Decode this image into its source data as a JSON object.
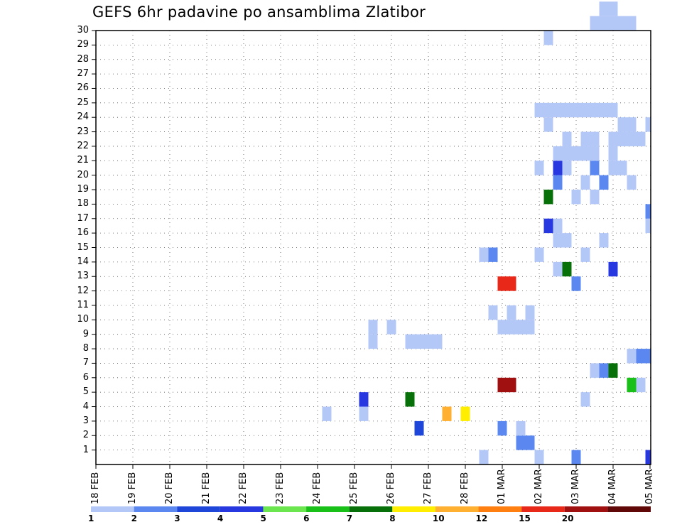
{
  "chart_data": {
    "type": "heatmap",
    "title": "GEFS 6hr padavine po ansamblima Zlatibor",
    "y_ticks": [
      "1",
      "2",
      "3",
      "4",
      "5",
      "6",
      "7",
      "8",
      "9",
      "10",
      "11",
      "12",
      "13",
      "14",
      "15",
      "16",
      "17",
      "18",
      "19",
      "20",
      "21",
      "22",
      "23",
      "24",
      "25",
      "26",
      "27",
      "28",
      "29",
      "30"
    ],
    "x_ticks": [
      "18 FEB",
      "19 FEB",
      "20 FEB",
      "21 FEB",
      "22 FEB",
      "23 FEB",
      "24 FEB",
      "25 FEB",
      "26 FEB",
      "27 FEB",
      "28 FEB",
      "01 MAR",
      "02 MAR",
      "03 MAR",
      "04 MAR",
      "05 MAR"
    ],
    "colorbar": {
      "labels": [
        "1",
        "2",
        "3",
        "4",
        "5",
        "6",
        "7",
        "8",
        "10",
        "12",
        "15",
        "20"
      ],
      "colors": [
        "#b4c8f8",
        "#5a88f0",
        "#1e46d8",
        "#2838e0",
        "#6ce64e",
        "#18c018",
        "#087008",
        "#ffee00",
        "#ffb030",
        "#ff8010",
        "#e82818",
        "#a01010",
        "#600808"
      ]
    },
    "cells": [
      [
        0,
        30,
        0
      ],
      [
        0,
        28.5,
        0
      ],
      [
        0,
        31,
        1
      ],
      [
        0,
        33,
        3
      ],
      [
        0,
        33.5,
        1
      ],
      [
        0,
        34,
        4
      ],
      [
        0,
        34.5,
        0
      ],
      [
        0,
        35,
        1
      ],
      [
        0,
        35.5,
        0
      ],
      [
        1,
        29.5,
        1
      ],
      [
        1,
        29.75,
        1
      ],
      [
        1,
        33.5,
        4
      ],
      [
        1,
        33.75,
        6
      ],
      [
        2,
        26.75,
        2
      ],
      [
        2,
        29,
        1
      ],
      [
        2,
        29.5,
        0
      ],
      [
        2,
        33.5,
        3
      ],
      [
        3,
        24.25,
        0
      ],
      [
        3,
        25.25,
        0
      ],
      [
        3,
        27.5,
        8
      ],
      [
        3,
        28,
        7
      ],
      [
        4,
        25.25,
        3
      ],
      [
        4,
        26.5,
        6
      ],
      [
        4,
        31.25,
        0
      ],
      [
        4,
        33.25,
        1
      ],
      [
        4,
        33.5,
        0
      ],
      [
        4,
        34.75,
        0
      ],
      [
        5,
        29,
        11
      ],
      [
        5,
        29.25,
        11
      ],
      [
        5,
        32.5,
        5
      ],
      [
        5,
        32.75,
        0
      ],
      [
        5,
        33.25,
        0
      ],
      [
        5,
        33.5,
        7
      ],
      [
        5,
        34,
        0
      ],
      [
        6,
        31.5,
        0
      ],
      [
        6,
        31.75,
        1
      ],
      [
        6,
        32,
        6
      ],
      [
        6,
        33.25,
        3
      ],
      [
        7,
        32.5,
        0
      ],
      [
        7,
        32.75,
        1
      ],
      [
        7,
        33,
        1
      ],
      [
        7,
        34,
        0
      ],
      [
        7,
        34.25,
        3
      ],
      [
        8,
        25.5,
        0
      ],
      [
        8,
        26.5,
        0
      ],
      [
        8,
        26.75,
        0
      ],
      [
        8,
        27,
        0
      ],
      [
        8,
        27.25,
        0
      ],
      [
        9,
        25.5,
        0
      ],
      [
        9,
        26,
        0
      ],
      [
        9,
        29,
        0
      ],
      [
        9,
        29.25,
        0
      ],
      [
        9,
        29.5,
        0
      ],
      [
        9,
        29.75,
        0
      ],
      [
        10,
        28.75,
        0
      ],
      [
        10,
        29.25,
        0
      ],
      [
        10,
        29.75,
        0
      ],
      [
        10,
        34.25,
        0
      ],
      [
        10,
        34.5,
        0
      ],
      [
        10,
        35,
        0
      ],
      [
        11,
        35.75,
        0
      ],
      [
        11,
        36,
        1
      ],
      [
        11,
        36.25,
        0
      ],
      [
        12,
        29,
        10
      ],
      [
        12,
        29.25,
        10
      ],
      [
        12,
        31,
        1
      ],
      [
        13,
        30.5,
        0
      ],
      [
        13,
        30.75,
        6
      ],
      [
        13,
        32,
        3
      ],
      [
        13,
        35.25,
        0
      ],
      [
        14,
        28.5,
        0
      ],
      [
        14,
        28.75,
        1
      ],
      [
        14,
        30,
        0
      ],
      [
        14,
        31.25,
        0
      ],
      [
        15,
        30.5,
        0
      ],
      [
        15,
        30.75,
        0
      ],
      [
        15,
        31.75,
        0
      ],
      [
        16,
        30.25,
        3
      ],
      [
        16,
        30.5,
        0
      ],
      [
        16,
        33,
        0
      ],
      [
        16,
        33.75,
        0
      ],
      [
        16,
        34,
        0
      ],
      [
        16,
        34.5,
        0
      ],
      [
        16,
        34.75,
        0
      ],
      [
        17,
        33,
        1
      ],
      [
        17,
        33.75,
        0
      ],
      [
        17,
        34,
        2
      ],
      [
        17,
        34.25,
        0
      ],
      [
        18,
        30.25,
        6
      ],
      [
        18,
        31,
        0
      ],
      [
        18,
        31.5,
        0
      ],
      [
        19,
        30.5,
        1
      ],
      [
        19,
        31.25,
        0
      ],
      [
        19,
        31.75,
        1
      ],
      [
        19,
        32.5,
        0
      ],
      [
        20,
        30,
        0
      ],
      [
        20,
        30.5,
        3
      ],
      [
        20,
        30.75,
        0
      ],
      [
        20,
        31.5,
        1
      ],
      [
        20,
        32,
        0
      ],
      [
        20,
        32.25,
        0
      ],
      [
        20,
        33.5,
        1
      ],
      [
        20,
        34.25,
        0
      ],
      [
        20,
        34.5,
        0
      ],
      [
        21,
        30.5,
        0
      ],
      [
        21,
        30.75,
        0
      ],
      [
        21,
        31,
        0
      ],
      [
        21,
        31.25,
        0
      ],
      [
        21,
        31.5,
        0
      ],
      [
        21,
        32,
        0
      ],
      [
        22,
        30.75,
        0
      ],
      [
        22,
        31.25,
        0
      ],
      [
        22,
        31.5,
        0
      ],
      [
        22,
        32,
        0
      ],
      [
        22,
        32.25,
        0
      ],
      [
        22,
        32.5,
        0
      ],
      [
        22,
        32.75,
        0
      ],
      [
        23,
        30.25,
        0
      ],
      [
        23,
        32.25,
        0
      ],
      [
        23,
        32.5,
        0
      ],
      [
        23,
        33,
        0
      ],
      [
        23,
        33.25,
        0
      ],
      [
        23,
        34.25,
        0
      ],
      [
        23,
        34.5,
        0
      ],
      [
        23,
        34.75,
        0
      ],
      [
        23,
        35,
        0
      ],
      [
        23,
        35.25,
        0
      ],
      [
        23,
        35.5,
        0
      ],
      [
        24,
        30,
        0
      ],
      [
        24,
        30.25,
        0
      ],
      [
        24,
        30.5,
        0
      ],
      [
        24,
        30.75,
        0
      ],
      [
        24,
        31,
        0
      ],
      [
        24,
        31.25,
        0
      ],
      [
        24,
        31.5,
        0
      ],
      [
        24,
        31.75,
        0
      ],
      [
        24,
        32,
        0
      ],
      [
        25,
        33.5,
        0
      ],
      [
        25,
        34,
        0
      ],
      [
        26,
        33.75,
        0
      ],
      [
        26,
        34,
        0
      ],
      [
        26,
        34.25,
        0
      ],
      [
        27,
        34.5,
        0
      ],
      [
        28,
        34,
        0
      ],
      [
        28,
        34.25,
        0
      ],
      [
        29,
        30.25,
        0
      ],
      [
        30,
        31.5,
        0
      ],
      [
        30,
        31.75,
        0
      ],
      [
        30,
        32,
        0
      ],
      [
        30,
        32.25,
        0
      ],
      [
        30,
        32.5,
        0
      ],
      [
        31,
        31.75,
        0
      ],
      [
        31,
        32,
        0
      ],
      [
        32,
        33.25,
        0
      ],
      [
        32,
        33.5,
        0
      ],
      [
        33,
        32.25,
        0
      ],
      [
        33,
        32.5,
        0
      ]
    ],
    "xlim": [
      18,
      33
    ],
    "ylim": [
      0,
      30
    ],
    "grid": true
  }
}
